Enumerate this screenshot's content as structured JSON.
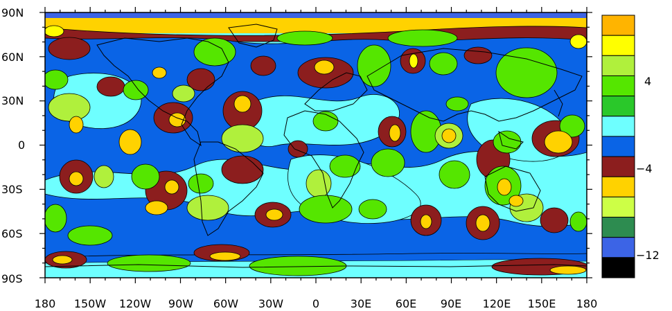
{
  "map": {
    "projection": "cylindrical-equidistant",
    "lon_range": [
      -180,
      180
    ],
    "lat_range": [
      -90,
      90
    ],
    "continent_outlines": true,
    "lat_ticks": [
      "90N",
      "60N",
      "30N",
      "0",
      "30S",
      "60S",
      "90S"
    ],
    "lon_ticks": [
      "180",
      "150W",
      "120W",
      "90W",
      "60W",
      "30W",
      "0",
      "30E",
      "60E",
      "90E",
      "120E",
      "150E",
      "180"
    ]
  },
  "colorbar": {
    "orientation": "vertical",
    "colors_top_to_bottom": [
      "#FFB400",
      "#FFFF00",
      "#B0F03C",
      "#55E600",
      "#2AC82A",
      "#6EFFFF",
      "#0A64E6",
      "#8C1E1E",
      "#FFD200",
      "#CDFF46",
      "#2D8C50",
      "#3C64E6",
      "#000000"
    ],
    "labels": [
      "4",
      "−4",
      "−12"
    ]
  },
  "field_colors": {
    "ocean_background": "#6EFFFF",
    "blue": "#0A64E6",
    "dark_red": "#8C1E1E",
    "orange": "#FFD200",
    "yellow": "#FFFF00",
    "light_green": "#B0F03C",
    "green": "#55E600",
    "mid_green": "#2AC82A"
  }
}
